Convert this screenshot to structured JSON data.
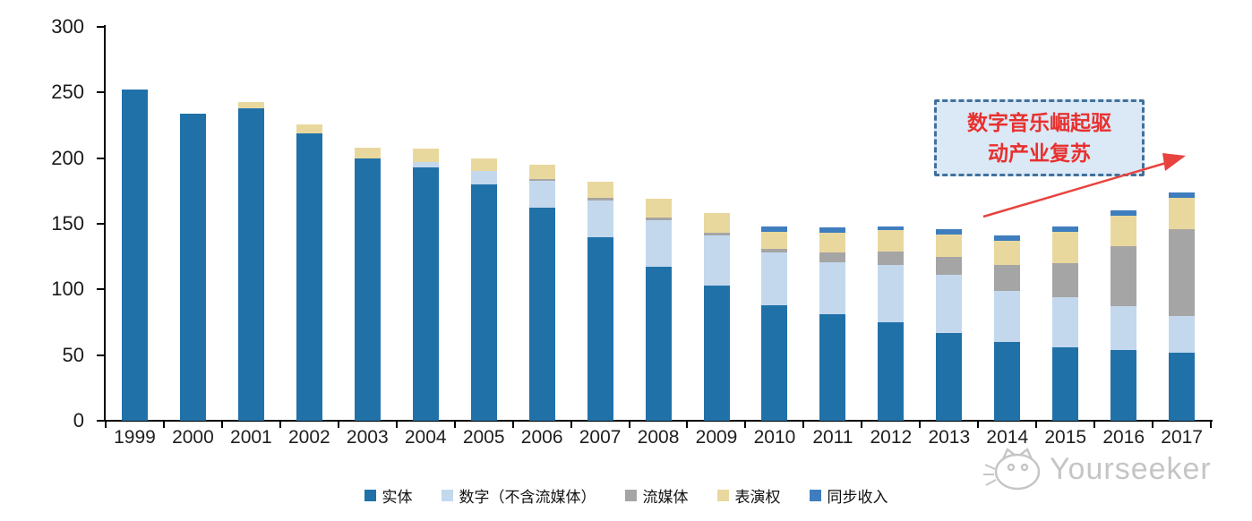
{
  "background": "#FFFFFF",
  "chart_data": {
    "type": "bar",
    "stacked": true,
    "categories": [
      "1999",
      "2000",
      "2001",
      "2002",
      "2003",
      "2004",
      "2005",
      "2006",
      "2007",
      "2008",
      "2009",
      "2010",
      "2011",
      "2012",
      "2013",
      "2014",
      "2015",
      "2016",
      "2017"
    ],
    "series": [
      {
        "key": "physical",
        "name": "实体",
        "color": "#2171A9",
        "values": [
          252,
          234,
          238,
          219,
          200,
          193,
          180,
          162,
          140,
          117,
          103,
          88,
          81,
          75,
          67,
          60,
          56,
          54,
          52
        ]
      },
      {
        "key": "digital-excl-streaming",
        "name": "数字（不含流媒体）",
        "color": "#C3D8ED",
        "values": [
          0,
          0,
          0,
          0,
          0,
          4,
          10,
          21,
          28,
          36,
          38,
          40,
          40,
          44,
          44,
          39,
          38,
          33,
          28
        ]
      },
      {
        "key": "streaming",
        "name": "流媒体",
        "color": "#A5A5A5",
        "values": [
          0,
          0,
          0,
          0,
          0,
          0,
          0,
          1,
          2,
          2,
          2,
          3,
          7,
          10,
          14,
          20,
          26,
          46,
          66
        ]
      },
      {
        "key": "performance-rights",
        "name": "表演权",
        "color": "#E9D89E",
        "values": [
          0,
          0,
          5,
          7,
          8,
          10,
          10,
          11,
          12,
          14,
          15,
          13,
          15,
          16,
          17,
          18,
          24,
          23,
          24
        ]
      },
      {
        "key": "sync-revenue",
        "name": "同步收入",
        "color": "#3F7EBE",
        "values": [
          0,
          0,
          0,
          0,
          0,
          0,
          0,
          0,
          0,
          0,
          0,
          4,
          4,
          3,
          4,
          4,
          4,
          4,
          4
        ]
      }
    ],
    "ylim": [
      0,
      300
    ],
    "y_ticks": [
      0,
      50,
      100,
      150,
      200,
      250,
      300
    ],
    "xlabel": "",
    "ylabel": "",
    "title": "",
    "grid": false,
    "legend_position": "bottom",
    "axis_color": "#000000",
    "tick_label_color": "#1F1F1F"
  },
  "annotation": {
    "text_line1": "数字音乐崛起驱",
    "text_line2": "动产业复苏",
    "fill_color": "#DBE8F5",
    "border_color": "#41719C",
    "text_color": "#E8302E",
    "arrow_color": "#E8433F"
  },
  "watermark": {
    "text": "Yourseeker",
    "icon": "cat-face-icon",
    "color": "#C5C5C5"
  }
}
